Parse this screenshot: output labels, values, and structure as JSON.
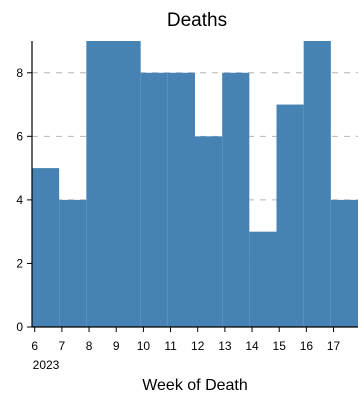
{
  "chart_data": {
    "type": "bar",
    "title": "Deaths",
    "xlabel": "Week of Death",
    "ylabel": "",
    "x_secondary_label": "2023",
    "categories": [
      "6",
      "7",
      "8",
      "9",
      "10",
      "11",
      "12",
      "13",
      "14",
      "15",
      "16",
      "17"
    ],
    "x_week_start": [
      5.9,
      6.9,
      7.9,
      8.9,
      9.9,
      10.9,
      11.9,
      12.9,
      13.9,
      14.9,
      15.9,
      16.9
    ],
    "values": [
      5,
      4,
      9,
      9,
      8,
      8,
      6,
      8,
      3,
      7,
      9,
      4
    ],
    "y_ticks": [
      0,
      2,
      4,
      6,
      8
    ],
    "ylim": [
      0,
      9
    ],
    "xlim": [
      5.9,
      17.9
    ],
    "grid_y": [
      2,
      4,
      6,
      8
    ],
    "grid": true,
    "legend": "none",
    "bar_color": "#4682b4",
    "grid_color": "#b5b5b5"
  }
}
